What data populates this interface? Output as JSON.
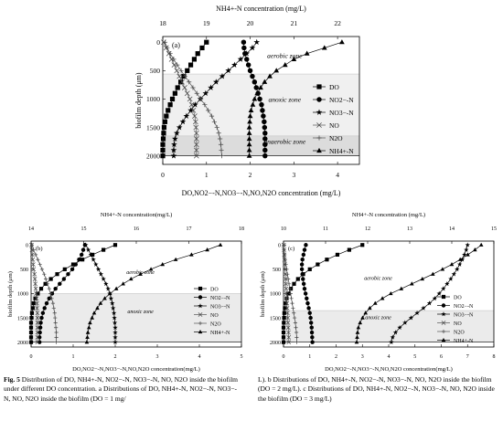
{
  "panels": [
    {
      "id": "a",
      "label": "(a)",
      "top_axis_title": "NH4+-N concentration (mg/L)",
      "bottom_axis_title": "DO,NO2−-N,NO3−-N,NO,N2O concentration (mg/L)",
      "y_axis_title": "biofilm depth (μm)",
      "zones": [
        "aerobic zone",
        "anoxic zone",
        "anaerobic zone"
      ],
      "legend": [
        "DO",
        "NO2−-N",
        "NO3−-N",
        "NO",
        "N2O",
        "NH4+-N"
      ]
    },
    {
      "id": "b",
      "label": "(b)",
      "top_axis_title": "NH4+-N concentration(mg/L)",
      "bottom_axis_title": "DO,NO2−-N,NO3−-N,NO,N2O concentration(mg/L)",
      "y_axis_title": "biofilm depth (μm)",
      "zones": [
        "aerobic zone",
        "anoxic zone"
      ],
      "legend": [
        "DO",
        "NO2−-N",
        "NO3−-N",
        "NO",
        "N2O",
        "NH4+-N"
      ]
    },
    {
      "id": "c",
      "label": "(c)",
      "top_axis_title": "NH4+-N concentration (mg/L)",
      "bottom_axis_title": "DO,NO2−-N,NO3−-N,NO,N2O concentration(mg/L)",
      "y_axis_title": "biofilm depth (μm)",
      "zones": [
        "aerobic zone",
        "anoxic zone"
      ],
      "legend": [
        "DO",
        "NO2−-N",
        "NO3−-N",
        "NO",
        "N2O",
        "NH4+-N"
      ]
    }
  ],
  "caption": {
    "label": "Fig. 5",
    "left": "Distribution of DO, NH4+-N, NO2−-N, NO3−-N, NO, N2O inside the biofilm under different DO concentration. a Distributions of DO, NH4+-N, NO2−-N, NO3−-N, NO, N2O inside the biofilm (DO = 1 mg/",
    "right": "L). b Distributions of DO, NH4+-N, NO2−-N, NO3−-N, NO, N2O inside the biofilm (DO = 2 mg/L). c Distributions of DO, NH4+-N, NO2−-N, NO3−-N, NO, N2O inside the biofilm (DO = 3 mg/L)"
  },
  "chart_data": [
    {
      "type": "line",
      "panel": "a",
      "y": {
        "label": "biofilm depth (μm)",
        "lim": [
          2150,
          -100
        ],
        "ticks": [
          0,
          500,
          1000,
          1500,
          2000
        ]
      },
      "x_bottom": {
        "label": "DO,NO2−-N,NO3−-N,NO,N2O concentration (mg/L)",
        "lim": [
          0,
          4.5
        ],
        "ticks": [
          0,
          1,
          2,
          3,
          4
        ]
      },
      "x_top": {
        "label": "NH4+-N concentration (mg/L)",
        "lim": [
          18,
          22.5
        ],
        "ticks": [
          18,
          19,
          20,
          21,
          22
        ]
      },
      "zones": [
        {
          "name": "aerobic zone",
          "from": 0,
          "to": 560,
          "shade": "#ffffff"
        },
        {
          "name": "anoxic zone",
          "from": 560,
          "to": 1650,
          "shade": "#f0f0f0"
        },
        {
          "name": "anaerobic zone",
          "from": 1650,
          "to": 2000,
          "shade": "#dcdcdc"
        }
      ],
      "depth": [
        0,
        100,
        200,
        300,
        400,
        500,
        600,
        700,
        800,
        900,
        1000,
        1100,
        1200,
        1300,
        1400,
        1500,
        1600,
        1700,
        1800,
        1900,
        2000
      ],
      "series": [
        {
          "name": "DO",
          "axis": "bottom",
          "marker": "square",
          "values": [
            1.0,
            0.9,
            0.8,
            0.72,
            0.64,
            0.56,
            0.48,
            0.41,
            0.34,
            0.28,
            0.22,
            0.17,
            0.12,
            0.08,
            0.05,
            0.03,
            0.02,
            0.01,
            0.0,
            0.0,
            0.0
          ]
        },
        {
          "name": "NO2−-N",
          "axis": "bottom",
          "marker": "circle",
          "values": [
            1.85,
            1.86,
            1.88,
            1.92,
            1.96,
            2.0,
            2.05,
            2.1,
            2.14,
            2.18,
            2.22,
            2.26,
            2.28,
            2.3,
            2.32,
            2.33,
            2.34,
            2.34,
            2.34,
            2.34,
            2.34
          ]
        },
        {
          "name": "NO3−-N",
          "axis": "bottom",
          "marker": "star",
          "values": [
            2.15,
            2.05,
            1.92,
            1.78,
            1.64,
            1.5,
            1.36,
            1.22,
            1.1,
            0.98,
            0.86,
            0.74,
            0.64,
            0.54,
            0.46,
            0.38,
            0.32,
            0.28,
            0.26,
            0.25,
            0.25
          ]
        },
        {
          "name": "NO",
          "axis": "bottom",
          "marker": "x",
          "values": [
            0.02,
            0.08,
            0.14,
            0.2,
            0.26,
            0.32,
            0.38,
            0.44,
            0.5,
            0.56,
            0.62,
            0.66,
            0.7,
            0.73,
            0.75,
            0.76,
            0.77,
            0.77,
            0.77,
            0.77,
            0.77
          ]
        },
        {
          "name": "N2O",
          "axis": "bottom",
          "marker": "plus",
          "values": [
            0.05,
            0.1,
            0.17,
            0.25,
            0.33,
            0.42,
            0.51,
            0.6,
            0.69,
            0.78,
            0.87,
            0.96,
            1.04,
            1.12,
            1.18,
            1.24,
            1.28,
            1.31,
            1.33,
            1.34,
            1.35
          ]
        },
        {
          "name": "NH4+-N",
          "axis": "top",
          "marker": "triangle",
          "values": [
            22.1,
            21.7,
            21.3,
            21.0,
            20.8,
            20.6,
            20.45,
            20.33,
            20.24,
            20.16,
            20.1,
            20.06,
            20.02,
            20.0,
            19.99,
            19.98,
            19.98,
            19.98,
            19.98,
            19.98,
            19.98
          ]
        }
      ]
    },
    {
      "type": "line",
      "panel": "b",
      "y": {
        "label": "biofilm depth (μm)",
        "lim": [
          2100,
          -80
        ],
        "ticks": [
          0,
          500,
          1000,
          1500,
          2000
        ]
      },
      "x_bottom": {
        "label": "DO,NO2−-N,NO3−-N,NO,N2O concentration(mg/L)",
        "lim": [
          0,
          5
        ],
        "ticks": [
          0,
          1,
          2,
          3,
          4,
          5
        ]
      },
      "x_top": {
        "label": "NH4+-N concentration(mg/L)",
        "lim": [
          14,
          18
        ],
        "ticks": [
          14,
          15,
          16,
          17,
          18
        ]
      },
      "zones": [
        {
          "name": "aerobic zone",
          "from": 0,
          "to": 1000,
          "shade": "#ffffff"
        },
        {
          "name": "anoxic zone",
          "from": 1000,
          "to": 2000,
          "shade": "#ebebeb"
        }
      ],
      "depth": [
        0,
        100,
        200,
        300,
        400,
        500,
        600,
        700,
        800,
        900,
        1000,
        1100,
        1200,
        1300,
        1400,
        1500,
        1600,
        1700,
        1800,
        1900,
        2000
      ],
      "series": [
        {
          "name": "DO",
          "axis": "bottom",
          "marker": "square",
          "values": [
            2.0,
            1.72,
            1.46,
            1.22,
            1.0,
            0.8,
            0.62,
            0.47,
            0.34,
            0.24,
            0.16,
            0.1,
            0.06,
            0.04,
            0.02,
            0.01,
            0.0,
            0.0,
            0.0,
            0.0,
            0.0
          ]
        },
        {
          "name": "NO2−-N",
          "axis": "bottom",
          "marker": "circle",
          "values": [
            1.28,
            1.24,
            1.2,
            1.14,
            1.06,
            0.98,
            0.88,
            0.78,
            0.68,
            0.58,
            0.5,
            0.43,
            0.37,
            0.32,
            0.28,
            0.25,
            0.23,
            0.22,
            0.21,
            0.2,
            0.2
          ]
        },
        {
          "name": "NO3−-N",
          "axis": "bottom",
          "marker": "star",
          "values": [
            1.3,
            1.36,
            1.42,
            1.48,
            1.54,
            1.6,
            1.66,
            1.72,
            1.78,
            1.83,
            1.87,
            1.9,
            1.93,
            1.95,
            1.97,
            1.98,
            1.99,
            2.0,
            2.0,
            2.0,
            2.0
          ]
        },
        {
          "name": "NO",
          "axis": "bottom",
          "marker": "x",
          "values": [
            0.01,
            0.02,
            0.03,
            0.04,
            0.05,
            0.06,
            0.08,
            0.09,
            0.1,
            0.11,
            0.12,
            0.13,
            0.14,
            0.14,
            0.15,
            0.15,
            0.15,
            0.15,
            0.15,
            0.15,
            0.15
          ]
        },
        {
          "name": "N2O",
          "axis": "bottom",
          "marker": "plus",
          "values": [
            0.02,
            0.06,
            0.11,
            0.16,
            0.21,
            0.26,
            0.31,
            0.35,
            0.39,
            0.43,
            0.46,
            0.49,
            0.52,
            0.54,
            0.56,
            0.57,
            0.58,
            0.59,
            0.6,
            0.6,
            0.6
          ]
        },
        {
          "name": "NH4+-N",
          "axis": "top",
          "marker": "triangle",
          "values": [
            17.6,
            17.35,
            17.05,
            16.75,
            16.5,
            16.28,
            16.08,
            15.9,
            15.75,
            15.62,
            15.5,
            15.4,
            15.32,
            15.26,
            15.2,
            15.16,
            15.12,
            15.1,
            15.08,
            15.07,
            15.06
          ]
        }
      ]
    },
    {
      "type": "line",
      "panel": "c",
      "y": {
        "label": "biofilm depth (μm)",
        "lim": [
          2100,
          -80
        ],
        "ticks": [
          0,
          500,
          1000,
          1500,
          2000
        ]
      },
      "x_bottom": {
        "label": "DO,NO2−-N,NO3−-N,NO,N2O concentration(mg/L)",
        "lim": [
          0,
          8
        ],
        "ticks": [
          0,
          1,
          2,
          3,
          4,
          5,
          6,
          7,
          8
        ]
      },
      "x_top": {
        "label": "NH4+-N concentration (mg/L)",
        "lim": [
          10,
          15
        ],
        "ticks": [
          10,
          11,
          12,
          13,
          14,
          15
        ]
      },
      "zones": [
        {
          "name": "aerobic zone",
          "from": 0,
          "to": 1350,
          "shade": "#ffffff"
        },
        {
          "name": "anoxic zone",
          "from": 1350,
          "to": 2000,
          "shade": "#ebebeb"
        }
      ],
      "depth": [
        0,
        100,
        200,
        300,
        400,
        500,
        600,
        700,
        800,
        900,
        1000,
        1100,
        1200,
        1300,
        1400,
        1500,
        1600,
        1700,
        1800,
        1900,
        2000
      ],
      "series": [
        {
          "name": "DO",
          "axis": "bottom",
          "marker": "square",
          "values": [
            3.0,
            2.5,
            2.05,
            1.65,
            1.3,
            1.0,
            0.75,
            0.55,
            0.4,
            0.28,
            0.19,
            0.12,
            0.08,
            0.05,
            0.03,
            0.02,
            0.01,
            0.0,
            0.0,
            0.0,
            0.0
          ]
        },
        {
          "name": "NO2−-N",
          "axis": "bottom",
          "marker": "circle",
          "values": [
            0.85,
            0.8,
            0.76,
            0.72,
            0.7,
            0.7,
            0.72,
            0.74,
            0.77,
            0.8,
            0.84,
            0.88,
            0.92,
            0.96,
            1.0,
            1.03,
            1.05,
            1.07,
            1.08,
            1.09,
            1.1
          ]
        },
        {
          "name": "NO3−-N",
          "axis": "bottom",
          "marker": "star",
          "values": [
            7.0,
            6.95,
            6.88,
            6.8,
            6.7,
            6.6,
            6.48,
            6.36,
            6.22,
            6.08,
            5.92,
            5.75,
            5.55,
            5.32,
            5.08,
            4.85,
            4.62,
            4.42,
            4.26,
            4.15,
            4.1
          ]
        },
        {
          "name": "NO",
          "axis": "bottom",
          "marker": "x",
          "values": [
            0.01,
            0.02,
            0.03,
            0.04,
            0.05,
            0.06,
            0.07,
            0.08,
            0.09,
            0.1,
            0.11,
            0.12,
            0.13,
            0.14,
            0.15,
            0.16,
            0.17,
            0.18,
            0.19,
            0.2,
            0.2
          ]
        },
        {
          "name": "N2O",
          "axis": "bottom",
          "marker": "plus",
          "values": [
            0.01,
            0.02,
            0.04,
            0.06,
            0.09,
            0.12,
            0.15,
            0.18,
            0.21,
            0.24,
            0.27,
            0.3,
            0.33,
            0.36,
            0.39,
            0.42,
            0.45,
            0.47,
            0.49,
            0.5,
            0.5
          ]
        },
        {
          "name": "NH4+-N",
          "axis": "top",
          "marker": "triangle",
          "values": [
            14.7,
            14.55,
            14.38,
            14.2,
            14.0,
            13.78,
            13.55,
            13.3,
            13.05,
            12.8,
            12.55,
            12.35,
            12.18,
            12.05,
            11.95,
            11.88,
            11.82,
            11.78,
            11.76,
            11.75,
            11.74
          ]
        }
      ]
    }
  ]
}
